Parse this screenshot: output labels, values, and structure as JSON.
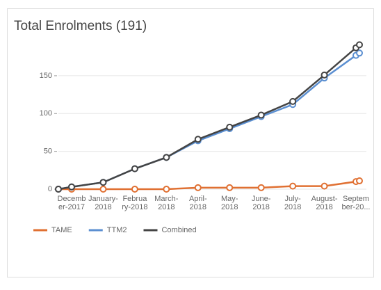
{
  "chart_data": {
    "type": "line",
    "title": "Total Enrolments (191)",
    "categories": [
      null,
      [
        "Decemb",
        "er-2017"
      ],
      [
        "January-",
        "2018"
      ],
      [
        "Februa",
        "ry-2018"
      ],
      [
        "March-",
        "2018"
      ],
      [
        "April-",
        "2018"
      ],
      [
        "May-",
        "2018"
      ],
      [
        "June-",
        "2018"
      ],
      [
        "July-",
        "2018"
      ],
      [
        "August-",
        "2018"
      ],
      [
        "Septem",
        "ber-20..."
      ],
      null
    ],
    "series": [
      {
        "name": "TAME",
        "color": "#e07032",
        "values": [
          0,
          0,
          0,
          0,
          0,
          2,
          2,
          2,
          4,
          4,
          10,
          11
        ]
      },
      {
        "name": "TTM2",
        "color": "#5b8fd1",
        "values": [
          0,
          3,
          9,
          27,
          42,
          64,
          80,
          96,
          112,
          147,
          177,
          180
        ]
      },
      {
        "name": "Combined",
        "color": "#444444",
        "values": [
          0,
          3,
          9,
          27,
          42,
          66,
          82,
          98,
          116,
          151,
          187,
          191
        ]
      }
    ],
    "ylim": [
      0,
      195
    ],
    "yticks": [
      0,
      50,
      100,
      150
    ],
    "grid": true,
    "legend": "bottom-left"
  }
}
